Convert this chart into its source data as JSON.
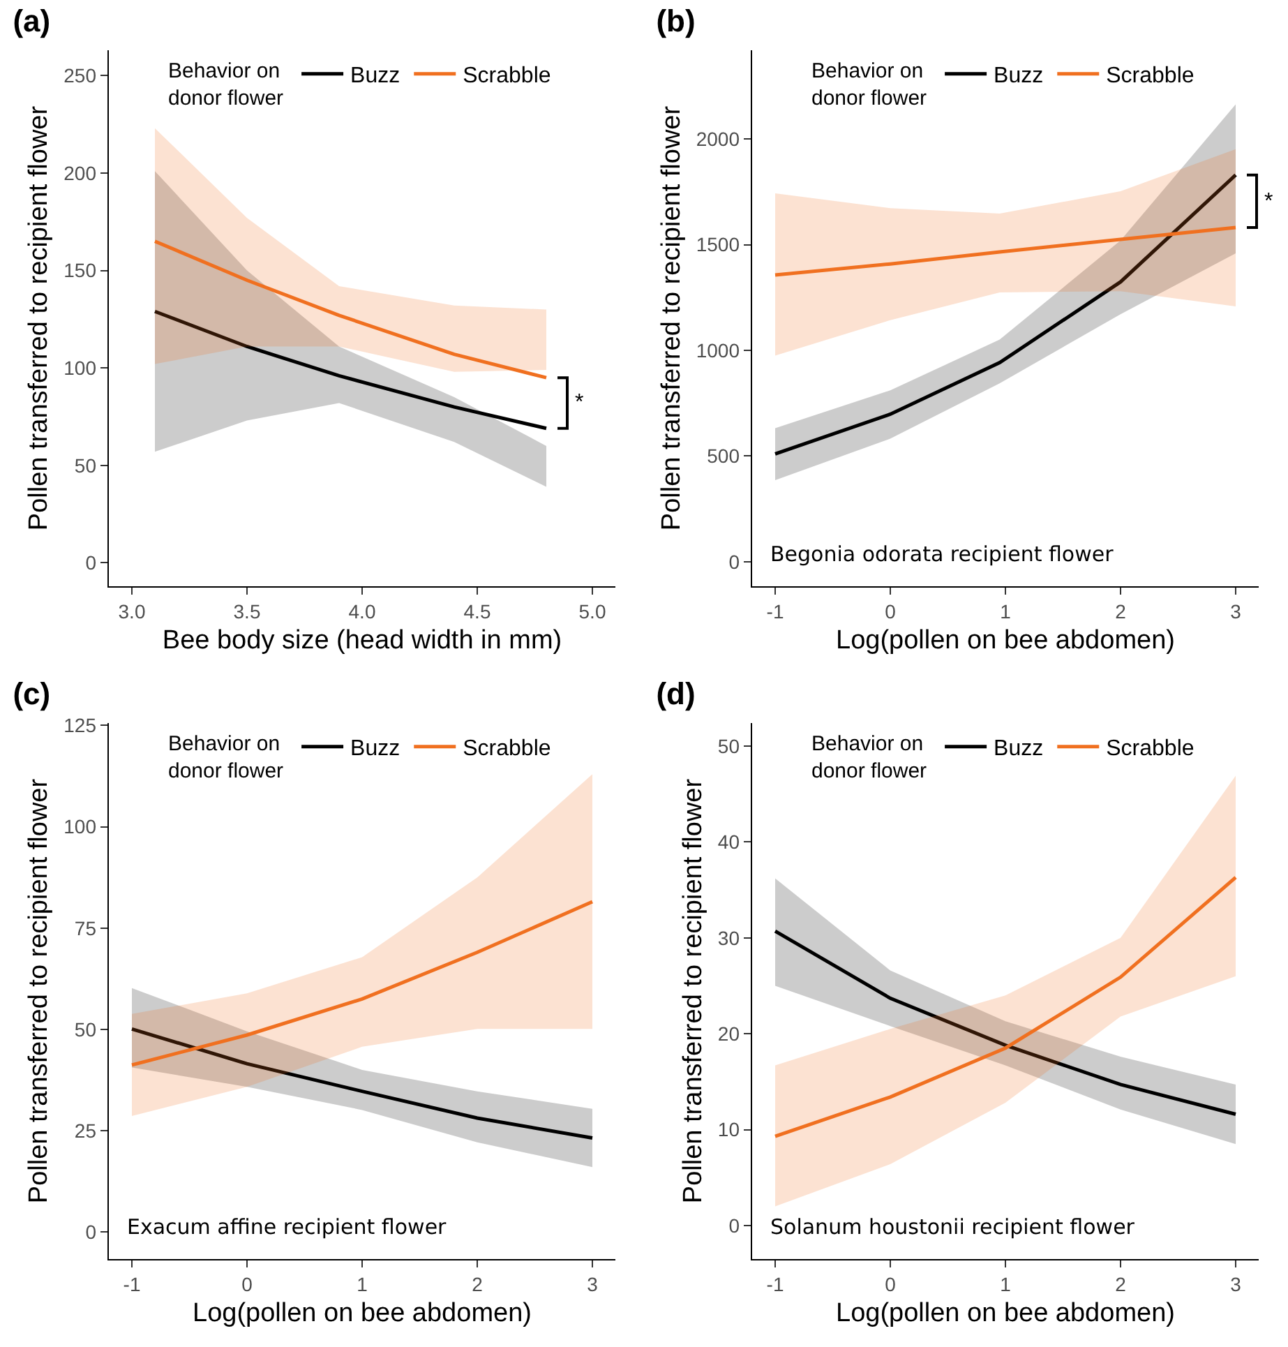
{
  "chart_data": [
    {
      "type": "line",
      "title": "(a)",
      "xlabel": "Bee body size (head width in mm)",
      "ylabel": "Pollen transferred to recipient flower",
      "legend_title": "Behavior on donor flower",
      "legend": "top",
      "grid": false,
      "line_style": "solid",
      "marker": "none",
      "x": [
        3.1,
        3.5,
        3.9,
        4.4,
        4.8
      ],
      "xlim": [
        2.9,
        5.1
      ],
      "xticks": [
        {
          "value": 3,
          "label": "3.0"
        },
        3.5,
        {
          "value": 4,
          "label": "4.0"
        },
        4.5,
        {
          "value": 5,
          "label": "5.0"
        }
      ],
      "ylim": [
        -12,
        263
      ],
      "yticks": [
        0,
        50,
        100,
        150,
        200,
        250
      ],
      "series": [
        {
          "name": "Buzz",
          "color": "#000000",
          "values": [
            129,
            111,
            96,
            80,
            69
          ],
          "lower": [
            57,
            73,
            82,
            62,
            39
          ],
          "upper": [
            201,
            150,
            111,
            85,
            60
          ]
        },
        {
          "name": "Scrabble",
          "color": "#f07020",
          "values": [
            165,
            145,
            127,
            107,
            95
          ],
          "lower": [
            102,
            111,
            111,
            98,
            99
          ],
          "upper": [
            223,
            177,
            142,
            132,
            130
          ]
        }
      ],
      "annotations": [
        "*"
      ]
    },
    {
      "type": "line",
      "title": "(b)",
      "xlabel": "Log(pollen on bee abdomen)",
      "ylabel": "Pollen transferred to recipient flower",
      "legend_title": "Behavior on donor flower",
      "legend": "top",
      "grid": false,
      "line_style": "solid",
      "marker": "none",
      "x": [
        -1,
        0,
        0.95,
        2,
        3
      ],
      "xlim": [
        -1.2,
        3.2
      ],
      "xticks": [
        -1,
        0,
        1,
        2,
        3
      ],
      "ylim": [
        -116,
        2420
      ],
      "yticks": [
        0,
        500,
        1000,
        1500,
        2000
      ],
      "series": [
        {
          "name": "Buzz",
          "color": "#000000",
          "values": [
            510,
            698,
            942,
            1324,
            1830
          ],
          "lower": [
            386,
            582,
            844,
            1171,
            1459
          ],
          "upper": [
            632,
            811,
            1051,
            1520,
            2164
          ]
        },
        {
          "name": "Scrabble",
          "color": "#f07020",
          "values": [
            1357,
            1409,
            1466,
            1525,
            1581
          ],
          "lower": [
            975,
            1143,
            1274,
            1280,
            1208
          ],
          "upper": [
            1743,
            1673,
            1647,
            1753,
            1952
          ]
        }
      ],
      "annotations": [
        "*",
        "Begonia odorata recipient flower"
      ]
    },
    {
      "type": "line",
      "title": "(c)",
      "xlabel": "Log(pollen on bee abdomen)",
      "ylabel": "Pollen transferred to recipient flower",
      "legend_title": "Behavior on donor flower",
      "legend": "top",
      "grid": false,
      "line_style": "solid",
      "marker": "none",
      "x": [
        -1,
        0,
        1,
        2,
        3
      ],
      "xlim": [
        -1.2,
        3.2
      ],
      "xticks": [
        -1,
        0,
        1,
        2,
        3
      ],
      "ylim": [
        -6.7,
        125.6
      ],
      "yticks": [
        0,
        25,
        50,
        75,
        100,
        125
      ],
      "series": [
        {
          "name": "Buzz",
          "color": "#000000",
          "values": [
            50.1,
            41.5,
            34.7,
            28.1,
            23.2
          ],
          "lower": [
            40.6,
            35.8,
            30.1,
            22.1,
            16
          ],
          "upper": [
            60.2,
            49.5,
            40,
            34.7,
            30.4
          ]
        },
        {
          "name": "Scrabble",
          "color": "#f07020",
          "values": [
            41.2,
            48.6,
            57.5,
            69,
            81.5
          ],
          "lower": [
            28.6,
            35.8,
            45.7,
            50.1,
            50.1
          ],
          "upper": [
            53.8,
            58.9,
            67.8,
            87.5,
            113
          ]
        }
      ],
      "annotations": [
        "Exacum affine recipient flower"
      ]
    },
    {
      "type": "line",
      "title": "(d)",
      "xlabel": "Log(pollen on bee abdomen)",
      "ylabel": "Pollen transferred to recipient flower",
      "legend_title": "Behavior on donor flower",
      "legend": "top",
      "grid": false,
      "line_style": "solid",
      "marker": "none",
      "x": [
        -1,
        0,
        1,
        2,
        3
      ],
      "xlim": [
        -1.2,
        3.2
      ],
      "xticks": [
        -1,
        0,
        1,
        2,
        3
      ],
      "ylim": [
        -3.5,
        52.4
      ],
      "yticks": [
        0,
        10,
        20,
        30,
        40,
        50
      ],
      "series": [
        {
          "name": "Buzz",
          "color": "#000000",
          "values": [
            30.7,
            23.7,
            18.8,
            14.7,
            11.6
          ],
          "lower": [
            25,
            20.8,
            16.7,
            12.1,
            8.5
          ],
          "upper": [
            36.2,
            26.6,
            21.3,
            17.6,
            14.7
          ]
        },
        {
          "name": "Scrabble",
          "color": "#f07020",
          "values": [
            9.3,
            13.4,
            18.5,
            25.9,
            36.3
          ],
          "lower": [
            2,
            6.4,
            12.8,
            21.8,
            26
          ],
          "upper": [
            16.7,
            20.5,
            24,
            30,
            46.9
          ]
        }
      ],
      "annotations": [
        "Solanum houstonii recipient flower"
      ]
    }
  ]
}
